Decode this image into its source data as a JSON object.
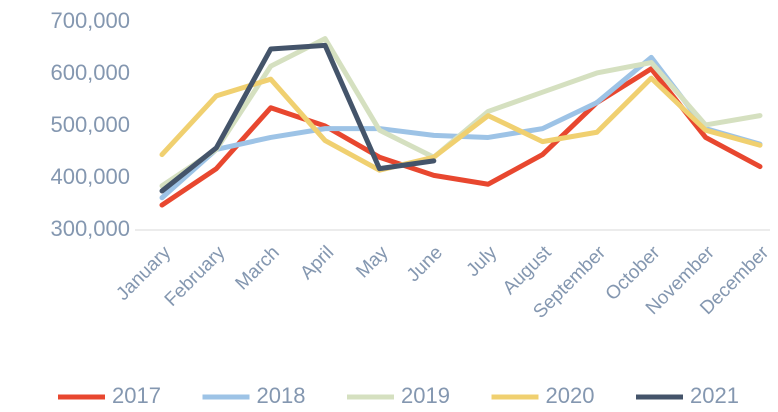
{
  "chart_data": {
    "type": "line",
    "categories": [
      "January",
      "February",
      "March",
      "April",
      "May",
      "June",
      "July",
      "August",
      "September",
      "October",
      "November",
      "December"
    ],
    "series": [
      {
        "name": "2017",
        "color": "#e8472f",
        "values": [
          348000,
          418000,
          535000,
          500000,
          440000,
          405000,
          388000,
          445000,
          545000,
          610000,
          478000,
          422000
        ]
      },
      {
        "name": "2018",
        "color": "#9dc3e6",
        "values": [
          362000,
          455000,
          478000,
          495000,
          495000,
          482000,
          478000,
          495000,
          545000,
          632000,
          495000,
          465000
        ]
      },
      {
        "name": "2019",
        "color": "#d5e0c0",
        "values": [
          385000,
          455000,
          615000,
          668000,
          492000,
          440000,
          528000,
          565000,
          602000,
          622000,
          502000,
          520000
        ]
      },
      {
        "name": "2020",
        "color": "#f0d070",
        "values": [
          445000,
          558000,
          590000,
          472000,
          415000,
          440000,
          520000,
          470000,
          488000,
          592000,
          492000,
          463000
        ]
      },
      {
        "name": "2021",
        "color": "#44546a",
        "values": [
          375000,
          458000,
          648000,
          655000,
          418000,
          433000,
          null,
          null,
          null,
          null,
          null,
          null
        ]
      }
    ],
    "ylim": [
      300000,
      700000
    ],
    "yticks": [
      {
        "value": 300000,
        "label": "300,000"
      },
      {
        "value": 400000,
        "label": "400,000"
      },
      {
        "value": 500000,
        "label": "500,000"
      },
      {
        "value": 600000,
        "label": "600,000"
      },
      {
        "value": 700000,
        "label": "700,000"
      }
    ],
    "grid": false,
    "legend": "bottom"
  }
}
